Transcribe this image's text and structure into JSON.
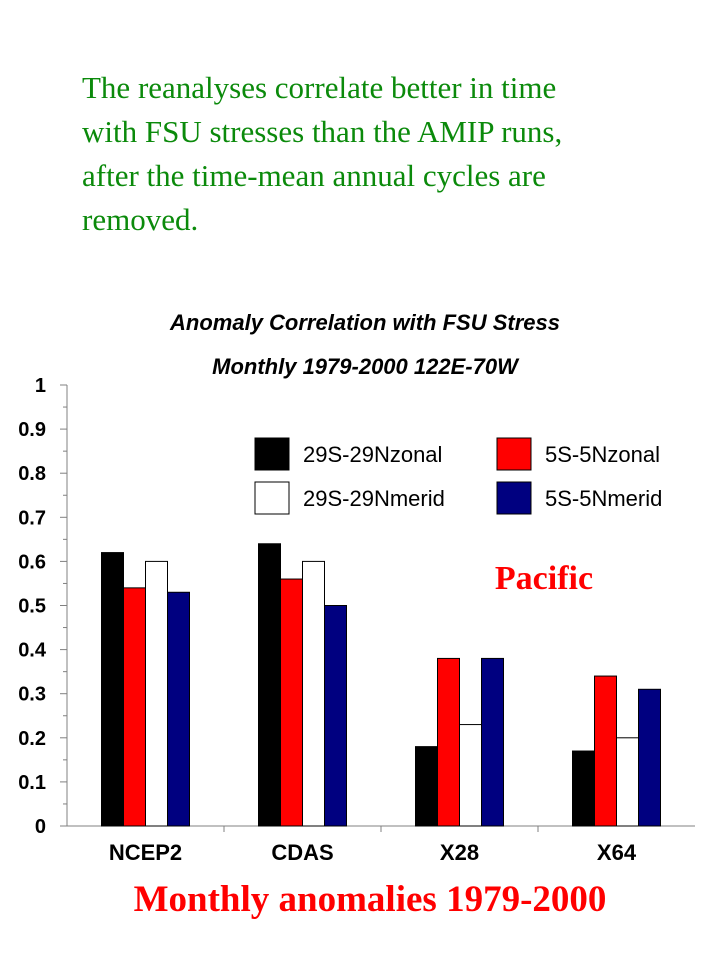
{
  "intro": {
    "lines": [
      "The reanalyses correlate better in time",
      "with FSU stresses than the AMIP runs,",
      "after the time-mean annual cycles are",
      "removed."
    ]
  },
  "chart_data": {
    "type": "bar",
    "title": "Anomaly Correlation with FSU Stress",
    "subtitle": "Monthly 1979-2000 122E-70W",
    "categories": [
      "NCEP2",
      "CDAS",
      "X28",
      "X64"
    ],
    "ylim": [
      0,
      1
    ],
    "yticks": [
      "0",
      "0.1",
      "0.2",
      "0.3",
      "0.4",
      "0.5",
      "0.6",
      "0.7",
      "0.8",
      "0.9",
      "1"
    ],
    "grid": false,
    "legend_position": "top-right",
    "series": [
      {
        "name": "29S-29Nzonal",
        "color": "#000000",
        "values": [
          0.62,
          0.64,
          0.18,
          0.17
        ]
      },
      {
        "name": "5S-5Nzonal",
        "color": "#ff0000",
        "values": [
          0.54,
          0.56,
          0.38,
          0.34
        ]
      },
      {
        "name": "29S-29Nmerid",
        "color": "#ffffff",
        "values": [
          0.6,
          0.6,
          0.23,
          0.2
        ]
      },
      {
        "name": "5S-5Nmerid",
        "color": "#000080",
        "values": [
          0.53,
          0.5,
          0.38,
          0.31
        ]
      }
    ],
    "annotations": [
      "Pacific",
      "Monthly anomalies 1979-2000"
    ]
  }
}
